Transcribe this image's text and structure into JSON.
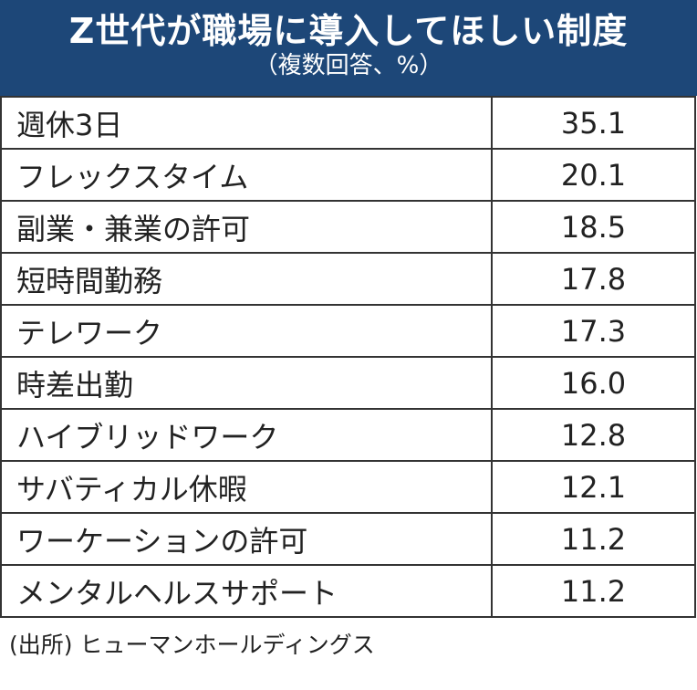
{
  "header": {
    "title": "Z世代が職場に導入してほしい制度",
    "subtitle": "（複数回答、%）"
  },
  "colors": {
    "header_bg": "#1d4778",
    "header_text": "#ffffff",
    "border": "#333333"
  },
  "chart_data": {
    "type": "table",
    "title": "Z世代が職場に導入してほしい制度",
    "subtitle": "（複数回答、%）",
    "rows": [
      {
        "label": "週休3日",
        "value": "35.1"
      },
      {
        "label": "フレックスタイム",
        "value": "20.1"
      },
      {
        "label": "副業・兼業の許可",
        "value": "18.5"
      },
      {
        "label": "短時間勤務",
        "value": "17.8"
      },
      {
        "label": "テレワーク",
        "value": "17.3"
      },
      {
        "label": "時差出勤",
        "value": "16.0"
      },
      {
        "label": "ハイブリッドワーク",
        "value": "12.8"
      },
      {
        "label": "サバティカル休暇",
        "value": "12.1"
      },
      {
        "label": "ワーケーションの許可",
        "value": "11.2"
      },
      {
        "label": "メンタルヘルスサポート",
        "value": "11.2"
      }
    ]
  },
  "footer": {
    "source": "(出所) ヒューマンホールディングス"
  }
}
